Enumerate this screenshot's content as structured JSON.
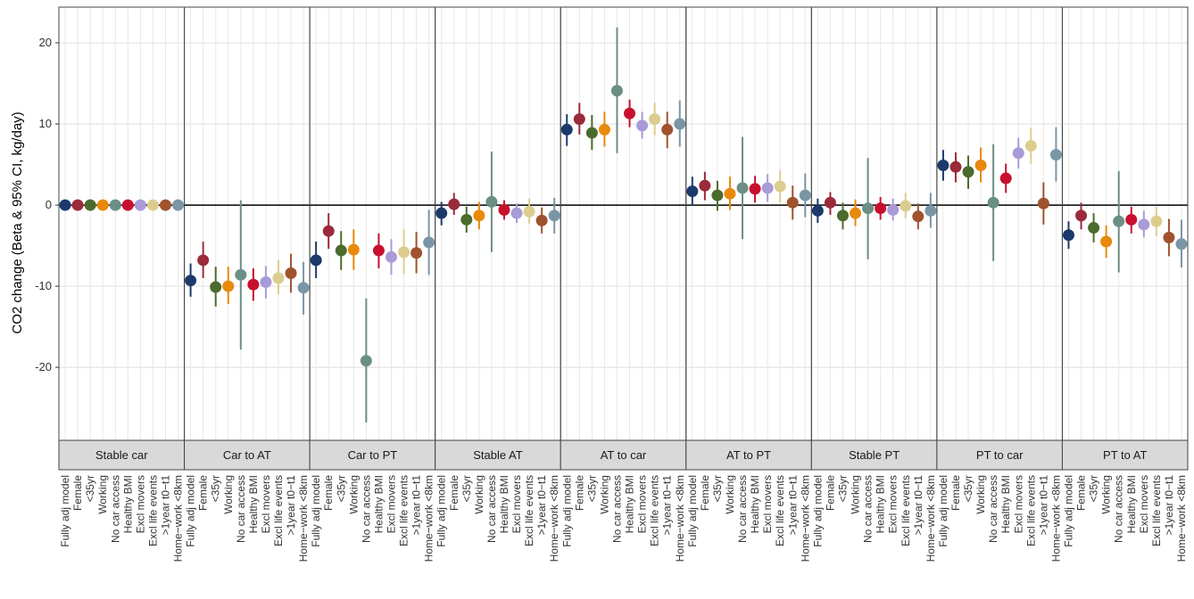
{
  "chart_data": {
    "type": "errorbar",
    "ylabel": "CO2 change (Beta & 95% CI, kg/day)",
    "ylim": [
      -29,
      24.4
    ],
    "yticks": [
      -20,
      -10,
      0,
      10,
      20
    ],
    "grid": true,
    "reference_line": 0,
    "categories": [
      "Fully adj model",
      "Female",
      "<35yr",
      "Working",
      "No car access",
      "Healthy BMI",
      "Excl movers",
      "Excl life events",
      ">1year t0−t1",
      "Home−work <8km"
    ],
    "colors": [
      "#1b3a6b",
      "#9b2a3a",
      "#4b6b2c",
      "#e8890c",
      "#6b8e85",
      "#c8102e",
      "#a99ad8",
      "#dccd8f",
      "#a0522d",
      "#7a96a6"
    ],
    "panels": [
      {
        "label": "Stable car",
        "values": [
          0,
          0,
          0,
          0,
          0,
          0,
          0,
          0,
          0,
          0
        ],
        "lower": [
          0,
          0,
          0,
          0,
          0,
          0,
          0,
          0,
          0,
          0
        ],
        "upper": [
          0,
          0,
          0,
          0,
          0,
          0,
          0,
          0,
          0,
          0
        ]
      },
      {
        "label": "Car to AT",
        "values": [
          -9.3,
          -6.8,
          -10.1,
          -10,
          -8.6,
          -9.8,
          -9.5,
          -9,
          -8.4,
          -10.2
        ],
        "lower": [
          -11.3,
          -9,
          -12.5,
          -12.2,
          -17.8,
          -11.8,
          -11.5,
          -11,
          -10.8,
          -13.5
        ],
        "upper": [
          -7.2,
          -4.5,
          -7.6,
          -7.6,
          0.6,
          -7.8,
          -7.5,
          -6.8,
          -6,
          -7
        ]
      },
      {
        "label": "Car to PT",
        "values": [
          -6.8,
          -3.2,
          -5.6,
          -5.5,
          -19.2,
          -5.6,
          -6.4,
          -5.8,
          -5.9,
          -4.6
        ],
        "lower": [
          -9,
          -5.4,
          -8,
          -8,
          -26.8,
          -7.8,
          -8.6,
          -8.5,
          -8.4,
          -8.6
        ],
        "upper": [
          -4.5,
          -1,
          -3.2,
          -3,
          -11.5,
          -3.5,
          -4.2,
          -3,
          -3.3,
          -0.6
        ]
      },
      {
        "label": "Stable AT",
        "values": [
          -1,
          0.1,
          -1.8,
          -1.3,
          0.4,
          -0.6,
          -1,
          -0.8,
          -1.9,
          -1.3
        ],
        "lower": [
          -2.5,
          -1.2,
          -3.4,
          -3,
          -5.8,
          -1.8,
          -2.2,
          -2.3,
          -3.5,
          -3.5
        ],
        "upper": [
          0.4,
          1.5,
          -0.2,
          0.4,
          6.6,
          0.6,
          0.2,
          0.8,
          -0.3,
          0.9
        ]
      },
      {
        "label": "AT to car",
        "values": [
          9.3,
          10.6,
          8.9,
          9.3,
          14.1,
          11.3,
          9.8,
          10.6,
          9.3,
          10
        ],
        "lower": [
          7.3,
          8.7,
          6.8,
          7.2,
          6.4,
          9.6,
          8.2,
          8.6,
          7,
          7.2
        ],
        "upper": [
          11.2,
          12.6,
          11.1,
          11.5,
          21.9,
          13,
          11.5,
          12.6,
          11.5,
          12.9
        ]
      },
      {
        "label": "AT to PT",
        "values": [
          1.7,
          2.4,
          1.2,
          1.4,
          2.1,
          2,
          2.1,
          2.3,
          0.3,
          1.2
        ],
        "lower": [
          -0.1,
          0.6,
          -0.7,
          -0.6,
          -4.2,
          0.3,
          0.4,
          0.3,
          -1.8,
          -1.5
        ],
        "upper": [
          3.5,
          4.1,
          3,
          3.5,
          8.4,
          3.6,
          3.8,
          4.3,
          2.4,
          3.9
        ]
      },
      {
        "label": "Stable PT",
        "values": [
          -0.7,
          0.3,
          -1.3,
          -1,
          -0.4,
          -0.4,
          -0.6,
          -0.1,
          -1.4,
          -0.7
        ],
        "lower": [
          -2.2,
          -1.2,
          -3,
          -2.6,
          -6.7,
          -1.8,
          -1.9,
          -1.6,
          -3,
          -2.8
        ],
        "upper": [
          0.8,
          1.6,
          0.3,
          0.7,
          5.8,
          1,
          0.8,
          1.5,
          0.2,
          1.5
        ]
      },
      {
        "label": "PT to car",
        "values": [
          4.9,
          4.7,
          4.1,
          4.9,
          0.3,
          3.3,
          6.4,
          7.3,
          0.2,
          6.2
        ],
        "lower": [
          3,
          2.8,
          2,
          2.8,
          -6.9,
          1.5,
          4.5,
          5.1,
          -2.4,
          2.9
        ],
        "upper": [
          6.8,
          6.5,
          6.1,
          7.1,
          7.5,
          5.1,
          8.3,
          9.5,
          2.8,
          9.6
        ]
      },
      {
        "label": "PT to AT",
        "values": [
          -3.7,
          -1.3,
          -2.8,
          -4.5,
          -2,
          -1.8,
          -2.4,
          -2,
          -4,
          -4.8
        ],
        "lower": [
          -5.4,
          -3,
          -4.6,
          -6.5,
          -8.3,
          -3.5,
          -4,
          -3.8,
          -6.3,
          -7.7
        ],
        "upper": [
          -2,
          0.3,
          -1,
          -2.5,
          4.2,
          -0.2,
          -0.7,
          -0.2,
          -1.7,
          -1.8
        ]
      }
    ]
  }
}
